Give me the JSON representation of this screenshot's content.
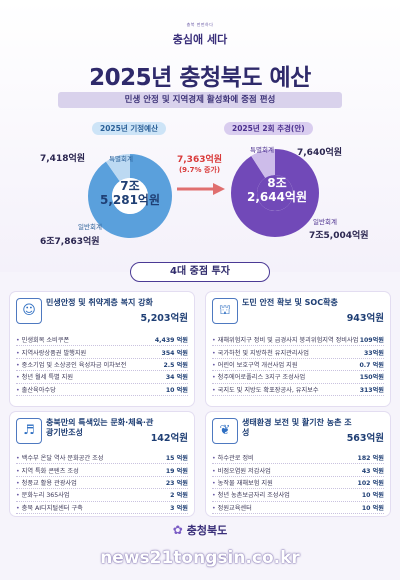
{
  "logo": {
    "small_text": "충북 펀펀하다",
    "name": "충심애 세다"
  },
  "title": "2025년 충청북도 예산",
  "subtitle": "민생 안정 및 지역경제 활성화에 중점 편성",
  "left_donut": {
    "label": "2025년 기정예산",
    "center_line1": "7조",
    "center_line2": "5,281억원",
    "special_label": "특별회계",
    "special_amount": "7,418억원",
    "general_label": "일반회계",
    "general_amount": "6조7,863억원",
    "color_general": "#5aa0dc",
    "color_special": "#bcd9f2"
  },
  "right_donut": {
    "label": "2025년 2회 추경(안)",
    "center_line1": "8조",
    "center_line2": "2,644억원",
    "special_label": "특별회계",
    "special_amount": "7,640억원",
    "general_label": "일반회계",
    "general_amount": "7조5,004억원",
    "color_general": "#7149b8",
    "color_special": "#cdbcea"
  },
  "increase": {
    "amount": "7,363억원",
    "percent": "(9.7% 증가)"
  },
  "section_title": "4대 중점 투자",
  "cards": [
    {
      "icon": "people-icon",
      "title": "민생안정 및 취약계층 복지 강화",
      "total": "5,203억원",
      "items": [
        {
          "label": "민생회복 소비쿠폰",
          "value": "4,439 억원"
        },
        {
          "label": "지역사랑상품권 발행지원",
          "value": "354 억원"
        },
        {
          "label": "중소기업 및 소상공인 육성자금 이차보전",
          "value": "2.5 억원"
        },
        {
          "label": "청년 월세 특별 지원",
          "value": "34 억원"
        },
        {
          "label": "출산육아수당",
          "value": "10 억원"
        }
      ]
    },
    {
      "icon": "road-icon",
      "title": "도민 안전 확보 및 SOC확충",
      "total": "943억원",
      "items": [
        {
          "label": "재해위험지구 정비 및 급경사지 붕괴위험지역 정비사업",
          "value": "109억원"
        },
        {
          "label": "국가하천 및 지방하천 유지관리사업",
          "value": "33억원"
        },
        {
          "label": "어린이 보호구역 개선사업 지원",
          "value": "0.7 억원"
        },
        {
          "label": "청주에어로폴리스 3지구 조성사업",
          "value": "150억원"
        },
        {
          "label": "국지도 및 지방도 확포장공사, 유지보수",
          "value": "313억원"
        }
      ]
    },
    {
      "icon": "culture-icon",
      "title": "충북만의 특색있는 문화·체육·관광기반조성",
      "total": "142억원",
      "items": [
        {
          "label": "백수부 온달 역사 문화공간 조성",
          "value": "15 억원"
        },
        {
          "label": "지역 특화 콘텐츠 조성",
          "value": "19 억원"
        },
        {
          "label": "청풍교 활용 관광사업",
          "value": "23 억원"
        },
        {
          "label": "문화누리 365사업",
          "value": "2 억원"
        },
        {
          "label": "충북 AI디지털센터 구축",
          "value": "3 억원"
        }
      ]
    },
    {
      "icon": "leaf-icon",
      "title": "생태환경 보전 및 활기찬 농촌 조성",
      "total": "563억원",
      "items": [
        {
          "label": "하수관로 정비",
          "value": "182 억원"
        },
        {
          "label": "비점오염원 저감사업",
          "value": "43 억원"
        },
        {
          "label": "농작물 재해보험 지원",
          "value": "102 억원"
        },
        {
          "label": "청년 농촌보금자리 조성사업",
          "value": "10 억원"
        },
        {
          "label": "정원교육센터",
          "value": "10 억원"
        }
      ]
    }
  ],
  "footer": {
    "logo_text": "충청북도"
  },
  "watermark": "news21tongsin.co.kr"
}
